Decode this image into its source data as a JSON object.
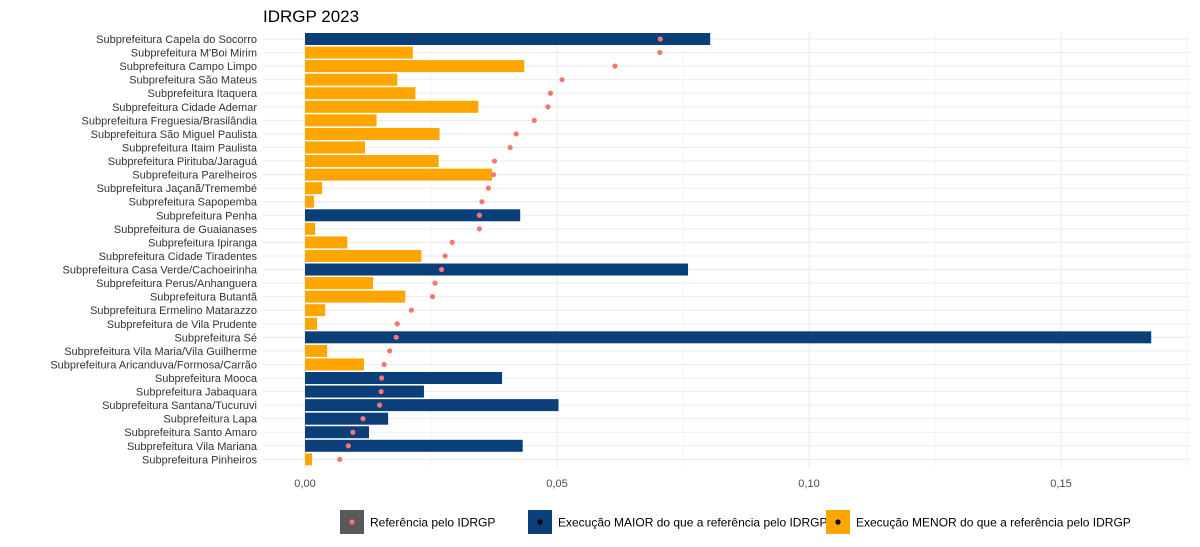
{
  "chart_data": {
    "type": "bar",
    "orientation": "horizontal",
    "title": "IDRGP 2023",
    "xlabel": "",
    "ylabel": "",
    "xlim": [
      0,
      0.175
    ],
    "xticks": [
      0,
      0.05,
      0.1,
      0.15
    ],
    "xtick_labels": [
      "0,00",
      "0,05",
      "0,10",
      "0,15"
    ],
    "grid": true,
    "legend_position": "bottom",
    "colors": {
      "maior": "#0b3f7a",
      "menor": "#ffa500",
      "referencia": "#f8766d",
      "legend_ref_key": "#595959",
      "grid": "#ebebeb"
    },
    "categories": [
      "Subprefeitura Capela do Socorro",
      "Subprefeitura M'Boi Mirim",
      "Subprefeitura Campo Limpo",
      "Subprefeitura São Mateus",
      "Subprefeitura Itaquera",
      "Subprefeitura Cidade Ademar",
      "Subprefeitura Freguesia/Brasilândia",
      "Subprefeitura São Miguel Paulista",
      "Subprefeitura Itaim Paulista",
      "Subprefeitura Pirituba/Jaraguá",
      "Subprefeitura Parelheiros",
      "Subprefeitura Jaçanã/Tremembé",
      "Subprefeitura Sapopemba",
      "Subprefeitura Penha",
      "Subprefeitura de Guaianases",
      "Subprefeitura Ipiranga",
      "Subprefeitura Cidade Tiradentes",
      "Subprefeitura Casa Verde/Cachoeirinha",
      "Subprefeitura Perus/Anhanguera",
      "Subprefeitura Butantã",
      "Subprefeitura Ermelino Matarazzo",
      "Subprefeitura de Vila Prudente",
      "Subprefeitura Sé",
      "Subprefeitura Vila Maria/Vila Guilherme",
      "Subprefeitura Aricanduva/Formosa/Carrão",
      "Subprefeitura Mooca",
      "Subprefeitura Jabaquara",
      "Subprefeitura Santana/Tucuruvi",
      "Subprefeitura Lapa",
      "Subprefeitura Santo Amaro",
      "Subprefeitura Vila Mariana",
      "Subprefeitura Pinheiros"
    ],
    "execucao": [
      0.0804,
      0.0214,
      0.0435,
      0.0183,
      0.0219,
      0.0344,
      0.0142,
      0.0267,
      0.0119,
      0.0265,
      0.0371,
      0.0034,
      0.0018,
      0.0427,
      0.002,
      0.0084,
      0.0231,
      0.076,
      0.0135,
      0.0199,
      0.004,
      0.0024,
      0.1679,
      0.0044,
      0.0117,
      0.0391,
      0.0236,
      0.0503,
      0.0165,
      0.0127,
      0.0432,
      0.0014
    ],
    "referencia": [
      0.0705,
      0.0704,
      0.0615,
      0.051,
      0.0487,
      0.0482,
      0.0455,
      0.0419,
      0.0407,
      0.0376,
      0.0374,
      0.0364,
      0.0351,
      0.0346,
      0.0346,
      0.0292,
      0.0278,
      0.0271,
      0.0258,
      0.0253,
      0.0211,
      0.0183,
      0.0181,
      0.0168,
      0.0157,
      0.0152,
      0.0151,
      0.0148,
      0.0115,
      0.0095,
      0.0086,
      0.0069
    ],
    "status": [
      "maior",
      "menor",
      "menor",
      "menor",
      "menor",
      "menor",
      "menor",
      "menor",
      "menor",
      "menor",
      "menor",
      "menor",
      "menor",
      "maior",
      "menor",
      "menor",
      "menor",
      "maior",
      "menor",
      "menor",
      "menor",
      "menor",
      "maior",
      "menor",
      "menor",
      "maior",
      "maior",
      "maior",
      "maior",
      "maior",
      "maior",
      "menor"
    ],
    "legend": {
      "referencia": "Referência pelo IDRGP",
      "maior": "Execução MAIOR do que a referência pelo IDRGP",
      "menor": "Execução MENOR do que a referência pelo IDRGP"
    }
  }
}
